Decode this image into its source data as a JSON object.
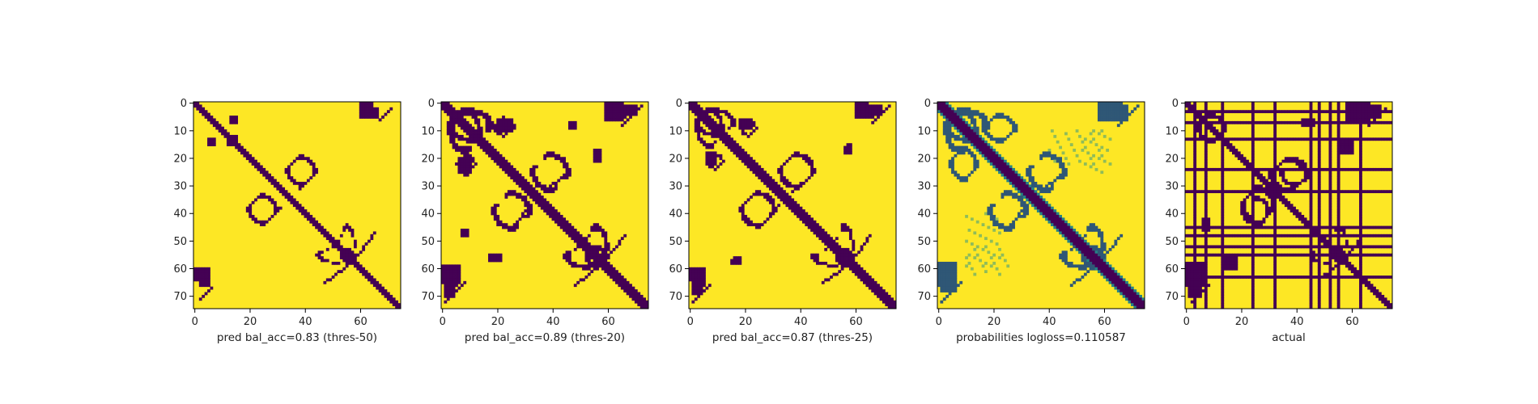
{
  "colormap": {
    "name": "viridis",
    "low": "#440154",
    "mid": "#21918c",
    "high": "#fde725"
  },
  "chart_data": [
    {
      "type": "heatmap",
      "label": "pred bal_acc=0.83 (thres-50)",
      "kind": "binary",
      "size": 75,
      "xticks": [
        0,
        20,
        40,
        60
      ],
      "yticks": [
        0,
        10,
        20,
        30,
        40,
        50,
        60,
        70
      ],
      "xlim": [
        0,
        75
      ],
      "ylim": [
        75,
        0
      ],
      "diagonal_width": 1.3,
      "features": [
        {
          "shape": "blob",
          "x": [
            62,
            66
          ],
          "y": [
            2,
            5
          ]
        },
        {
          "shape": "blob",
          "x": [
            12,
            14
          ],
          "y": [
            13,
            15
          ]
        },
        {
          "shape": "blob",
          "x": [
            13,
            15
          ],
          "y": [
            5,
            7
          ]
        },
        {
          "shape": "arc",
          "x": [
            33,
            44
          ],
          "y": [
            19,
            30
          ]
        },
        {
          "shape": "arc",
          "x": [
            19,
            30
          ],
          "y": [
            33,
            44
          ]
        },
        {
          "shape": "line",
          "x": [
            38,
            43
          ],
          "y": [
            31,
            26
          ]
        },
        {
          "shape": "line",
          "x": [
            26,
            31
          ],
          "y": [
            43,
            38
          ]
        },
        {
          "shape": "arc",
          "x": [
            44,
            58
          ],
          "y": [
            52,
            58
          ]
        },
        {
          "shape": "line",
          "x": [
            57,
            65
          ],
          "y": [
            58,
            47
          ]
        },
        {
          "shape": "blob",
          "x": [
            0,
            5
          ],
          "y": [
            60,
            64
          ]
        },
        {
          "shape": "line",
          "x": [
            2,
            6
          ],
          "y": [
            71,
            67
          ]
        }
      ]
    },
    {
      "type": "heatmap",
      "label": "pred bal_acc=0.89 (thres-20)",
      "kind": "binary",
      "size": 75,
      "xticks": [
        0,
        20,
        40,
        60
      ],
      "yticks": [
        0,
        10,
        20,
        30,
        40,
        50,
        60,
        70
      ],
      "xlim": [
        0,
        75
      ],
      "ylim": [
        75,
        0
      ],
      "diagonal_width": 2.3,
      "features": [
        {
          "shape": "arc",
          "x": [
            2,
            14
          ],
          "y": [
            2,
            18
          ]
        },
        {
          "shape": "arc",
          "x": [
            18,
            26
          ],
          "y": [
            5,
            12
          ]
        },
        {
          "shape": "blob",
          "x": [
            60,
            66
          ],
          "y": [
            1,
            5
          ]
        },
        {
          "shape": "blob",
          "x": [
            66,
            70
          ],
          "y": [
            1,
            4
          ]
        },
        {
          "shape": "arc",
          "x": [
            32,
            46
          ],
          "y": [
            18,
            32
          ]
        },
        {
          "shape": "arc",
          "x": [
            18,
            32
          ],
          "y": [
            32,
            46
          ]
        },
        {
          "shape": "line",
          "x": [
            37,
            44
          ],
          "y": [
            32,
            26
          ]
        },
        {
          "shape": "blob",
          "x": [
            6,
            10
          ],
          "y": [
            20,
            25
          ]
        },
        {
          "shape": "arc",
          "x": [
            44,
            60
          ],
          "y": [
            51,
            60
          ]
        },
        {
          "shape": "line",
          "x": [
            58,
            66
          ],
          "y": [
            58,
            48
          ]
        },
        {
          "shape": "blob",
          "x": [
            0,
            6
          ],
          "y": [
            59,
            65
          ]
        },
        {
          "shape": "line",
          "x": [
            1,
            8
          ],
          "y": [
            72,
            65
          ]
        },
        {
          "shape": "blob",
          "x": [
            55,
            57
          ],
          "y": [
            17,
            21
          ]
        },
        {
          "shape": "blob",
          "x": [
            46,
            48
          ],
          "y": [
            7,
            9
          ]
        }
      ]
    },
    {
      "type": "heatmap",
      "label": "pred bal_acc=0.87 (thres-25)",
      "kind": "binary",
      "size": 75,
      "xticks": [
        0,
        20,
        40,
        60
      ],
      "yticks": [
        0,
        10,
        20,
        30,
        40,
        50,
        60,
        70
      ],
      "xlim": [
        0,
        75
      ],
      "ylim": [
        75,
        0
      ],
      "diagonal_width": 2.0,
      "features": [
        {
          "shape": "arc",
          "x": [
            2,
            12
          ],
          "y": [
            2,
            16
          ]
        },
        {
          "shape": "arc",
          "x": [
            18,
            24
          ],
          "y": [
            6,
            12
          ]
        },
        {
          "shape": "blob",
          "x": [
            61,
            66
          ],
          "y": [
            1,
            5
          ]
        },
        {
          "shape": "blob",
          "x": [
            66,
            69
          ],
          "y": [
            1,
            4
          ]
        },
        {
          "shape": "arc",
          "x": [
            32,
            45
          ],
          "y": [
            18,
            31
          ]
        },
        {
          "shape": "arc",
          "x": [
            18,
            31
          ],
          "y": [
            32,
            45
          ]
        },
        {
          "shape": "line",
          "x": [
            37,
            44
          ],
          "y": [
            32,
            26
          ]
        },
        {
          "shape": "blob",
          "x": [
            6,
            9
          ],
          "y": [
            18,
            22
          ]
        },
        {
          "shape": "arc",
          "x": [
            44,
            59
          ],
          "y": [
            52,
            59
          ]
        },
        {
          "shape": "line",
          "x": [
            58,
            65
          ],
          "y": [
            58,
            48
          ]
        },
        {
          "shape": "blob",
          "x": [
            0,
            5
          ],
          "y": [
            60,
            64
          ]
        },
        {
          "shape": "line",
          "x": [
            1,
            7
          ],
          "y": [
            72,
            66
          ]
        },
        {
          "shape": "blob",
          "x": [
            56,
            58
          ],
          "y": [
            16,
            18
          ]
        },
        {
          "shape": "blob",
          "x": [
            15,
            18
          ],
          "y": [
            57,
            58
          ]
        }
      ]
    },
    {
      "type": "heatmap",
      "label": "probabilities logloss=0.110587",
      "kind": "probability",
      "size": 75,
      "xticks": [
        0,
        20,
        40,
        60
      ],
      "yticks": [
        0,
        10,
        20,
        30,
        40,
        50,
        60,
        70
      ],
      "xlim": [
        0,
        75
      ],
      "ylim": [
        75,
        0
      ],
      "diagonal_width": 2.0,
      "features": [
        {
          "shape": "arc",
          "x": [
            2,
            14
          ],
          "y": [
            2,
            18
          ]
        },
        {
          "shape": "arc",
          "x": [
            16,
            28
          ],
          "y": [
            4,
            14
          ]
        },
        {
          "shape": "blob",
          "x": [
            60,
            68
          ],
          "y": [
            1,
            6
          ]
        },
        {
          "shape": "arc",
          "x": [
            32,
            46
          ],
          "y": [
            18,
            32
          ]
        },
        {
          "shape": "arc",
          "x": [
            18,
            32
          ],
          "y": [
            32,
            46
          ]
        },
        {
          "shape": "line",
          "x": [
            37,
            44
          ],
          "y": [
            32,
            26
          ]
        },
        {
          "shape": "arc",
          "x": [
            44,
            60
          ],
          "y": [
            51,
            60
          ]
        },
        {
          "shape": "line",
          "x": [
            58,
            66
          ],
          "y": [
            58,
            48
          ]
        },
        {
          "shape": "blob",
          "x": [
            0,
            6
          ],
          "y": [
            58,
            66
          ]
        },
        {
          "shape": "line",
          "x": [
            1,
            8
          ],
          "y": [
            72,
            65
          ]
        },
        {
          "shape": "haze",
          "x": [
            40,
            60
          ],
          "y": [
            10,
            22
          ]
        },
        {
          "shape": "haze",
          "x": [
            10,
            25
          ],
          "y": [
            52,
            62
          ]
        }
      ]
    },
    {
      "type": "heatmap",
      "label": "actual",
      "kind": "binary",
      "size": 75,
      "xticks": [
        0,
        20,
        40,
        60
      ],
      "yticks": [
        0,
        10,
        20,
        30,
        40,
        50,
        60,
        70
      ],
      "xlim": [
        0,
        75
      ],
      "ylim": [
        75,
        0
      ],
      "diagonal_width": 1.5,
      "stripes": [
        3,
        7,
        13,
        24,
        32,
        45,
        48,
        52,
        55,
        63
      ],
      "features": [
        {
          "shape": "arc",
          "x": [
            4,
            14
          ],
          "y": [
            4,
            14
          ]
        },
        {
          "shape": "blob",
          "x": [
            42,
            46
          ],
          "y": [
            6,
            8
          ]
        },
        {
          "shape": "blob",
          "x": [
            62,
            70
          ],
          "y": [
            1,
            5
          ]
        },
        {
          "shape": "arc",
          "x": [
            30,
            44
          ],
          "y": [
            20,
            32
          ]
        },
        {
          "shape": "arc",
          "x": [
            20,
            30
          ],
          "y": [
            34,
            44
          ]
        },
        {
          "shape": "arc",
          "x": [
            44,
            58
          ],
          "y": [
            52,
            58
          ]
        },
        {
          "shape": "line",
          "x": [
            56,
            64
          ],
          "y": [
            58,
            48
          ]
        },
        {
          "shape": "blob",
          "x": [
            0,
            6
          ],
          "y": [
            58,
            66
          ]
        },
        {
          "shape": "line",
          "x": [
            2,
            8
          ],
          "y": [
            72,
            66
          ]
        },
        {
          "shape": "blob",
          "x": [
            14,
            18
          ],
          "y": [
            56,
            60
          ]
        }
      ]
    }
  ]
}
